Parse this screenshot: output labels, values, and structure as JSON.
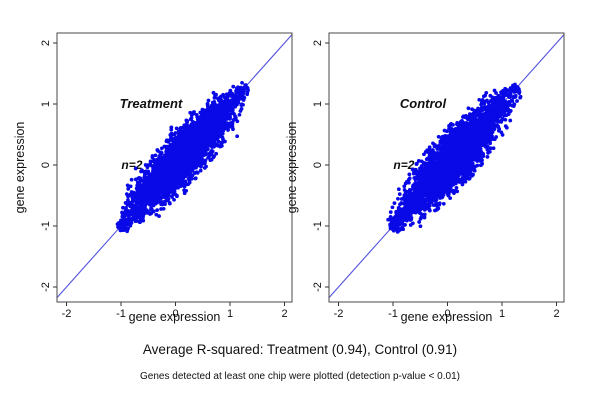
{
  "figure": {
    "captions": {
      "rsquared": "Average R-squared: Treatment (0.94), Control (0.91)",
      "footnote": "Genes detected at least one chip were plotted (detection p-value < 0.01)"
    },
    "colors": {
      "point": "#0909E8",
      "identity_line": "#5252DE",
      "frame": "#4a4a4a",
      "tick": "#333333",
      "tick_label": "#111111",
      "axis_title": "#111111",
      "group_label": "#8a8a8a",
      "annotation": "#1a1a1a",
      "background": "#ffffff"
    }
  },
  "chart_data": [
    {
      "type": "scatter",
      "group_label": "Treatment",
      "annotation": "n=2",
      "xlabel": "gene expression",
      "ylabel": "gene expression",
      "xlim": [
        -2.2,
        2.2
      ],
      "ylim": [
        -2.2,
        2.2
      ],
      "xticks": [
        "-2",
        "-1",
        "0",
        "1",
        "2"
      ],
      "yticks": [
        "-2",
        "-1",
        "0",
        "1",
        "2"
      ],
      "tick_values": [
        -2,
        -1,
        0,
        1,
        2
      ],
      "identity_line": true,
      "r_squared": 0.94,
      "grid": false,
      "points_summary": {
        "description": "dense blue cloud of per-gene expression values for two replicate chips, hugging the y=x identity line",
        "diagonal_extent": [
          -1.05,
          1.3
        ],
        "n_rendered": 3500
      },
      "gen": {
        "seed": 1234,
        "n": 3500,
        "tMin": -1.05,
        "tMax": 1.3,
        "sdCenter": 0.16,
        "sdEnd": 0.045,
        "outliers": 75,
        "outlierPosFrac": 0.72,
        "outlierMax": 0.5
      },
      "label_pos": {
        "x": -0.45,
        "y": 1.0
      },
      "annotation_pos": {
        "x": -0.8,
        "y": 0.0
      }
    },
    {
      "type": "scatter",
      "group_label": "Control",
      "annotation": "n=2",
      "xlabel": "gene expression",
      "ylabel": "gene expression",
      "xlim": [
        -2.2,
        2.2
      ],
      "ylim": [
        -2.2,
        2.2
      ],
      "xticks": [
        "-2",
        "-1",
        "0",
        "1",
        "2"
      ],
      "yticks": [
        "-2",
        "-1",
        "0",
        "1",
        "2"
      ],
      "tick_values": [
        -2,
        -1,
        0,
        1,
        2
      ],
      "identity_line": true,
      "r_squared": 0.91,
      "grid": false,
      "points_summary": {
        "description": "dense blue cloud of per-gene expression values for two replicate chips, hugging the y=x identity line",
        "diagonal_extent": [
          -1.05,
          1.28
        ],
        "n_rendered": 3500
      },
      "gen": {
        "seed": 9876,
        "n": 3500,
        "tMin": -1.05,
        "tMax": 1.28,
        "sdCenter": 0.17,
        "sdEnd": 0.05,
        "outliers": 55,
        "outlierPosFrac": 0.68,
        "outlierMax": 0.48
      },
      "label_pos": {
        "x": -0.45,
        "y": 1.0
      },
      "annotation_pos": {
        "x": -0.8,
        "y": 0.0
      }
    }
  ]
}
